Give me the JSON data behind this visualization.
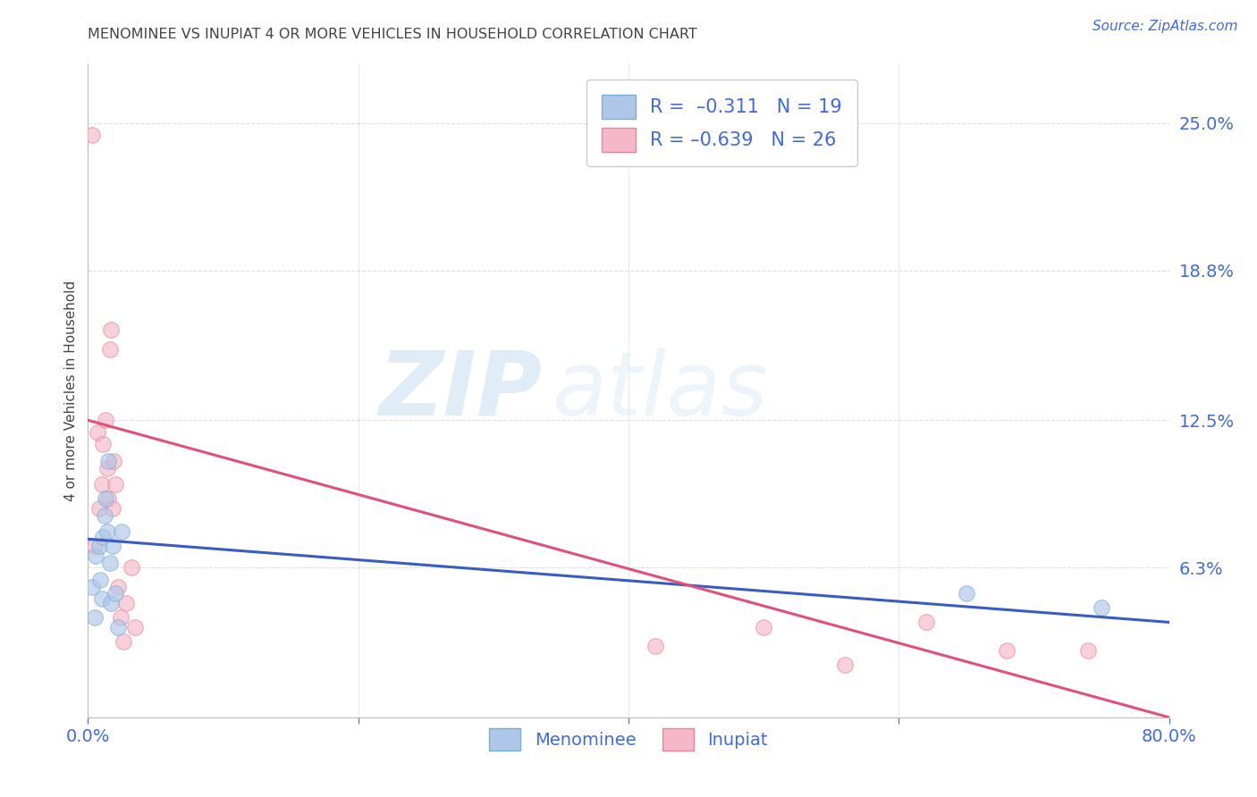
{
  "title": "MENOMINEE VS INUPIAT 4 OR MORE VEHICLES IN HOUSEHOLD CORRELATION CHART",
  "source": "Source: ZipAtlas.com",
  "ylabel": "4 or more Vehicles in Household",
  "xlabel": "",
  "watermark_zip": "ZIP",
  "watermark_atlas": "atlas",
  "xlim": [
    0.0,
    0.8
  ],
  "ylim": [
    0.0,
    0.275
  ],
  "xtick_vals": [
    0.0,
    0.2,
    0.4,
    0.6,
    0.8
  ],
  "ytick_right_labels": [
    "25.0%",
    "18.8%",
    "12.5%",
    "6.3%"
  ],
  "ytick_right_vals": [
    0.25,
    0.188,
    0.125,
    0.063
  ],
  "grid_hlines": [
    0.25,
    0.188,
    0.125,
    0.063,
    0.0
  ],
  "menominee_color": "#aec6e8",
  "inupiat_color": "#f5b8c8",
  "menominee_edge": "#7aafd4",
  "inupiat_edge": "#e8849a",
  "trend_blue": "#3a5bbf",
  "trend_pink": "#e0507a",
  "background_color": "#ffffff",
  "grid_color": "#e0e0e0",
  "title_color": "#444444",
  "label_color": "#4169e1",
  "tick_color": "#aaaaaa",
  "menominee_x": [
    0.003,
    0.005,
    0.006,
    0.008,
    0.009,
    0.01,
    0.011,
    0.012,
    0.013,
    0.014,
    0.015,
    0.016,
    0.017,
    0.018,
    0.02,
    0.022,
    0.025,
    0.65,
    0.75
  ],
  "menominee_y": [
    0.055,
    0.042,
    0.068,
    0.072,
    0.058,
    0.05,
    0.076,
    0.085,
    0.092,
    0.078,
    0.108,
    0.065,
    0.048,
    0.072,
    0.052,
    0.038,
    0.078,
    0.052,
    0.046
  ],
  "inupiat_x": [
    0.003,
    0.005,
    0.007,
    0.008,
    0.01,
    0.011,
    0.013,
    0.014,
    0.015,
    0.016,
    0.017,
    0.018,
    0.019,
    0.02,
    0.022,
    0.024,
    0.026,
    0.028,
    0.032,
    0.035,
    0.42,
    0.5,
    0.56,
    0.62,
    0.68,
    0.74
  ],
  "inupiat_y": [
    0.245,
    0.072,
    0.12,
    0.088,
    0.098,
    0.115,
    0.125,
    0.105,
    0.092,
    0.155,
    0.163,
    0.088,
    0.108,
    0.098,
    0.055,
    0.042,
    0.032,
    0.048,
    0.063,
    0.038,
    0.03,
    0.038,
    0.022,
    0.04,
    0.028,
    0.028
  ],
  "marker_size": 160,
  "alpha": 0.65,
  "blue_line_x0": 0.0,
  "blue_line_y0": 0.075,
  "blue_line_x1": 0.8,
  "blue_line_y1": 0.04,
  "pink_line_x0": 0.0,
  "pink_line_y0": 0.125,
  "pink_line_x1": 0.8,
  "pink_line_y1": 0.0
}
